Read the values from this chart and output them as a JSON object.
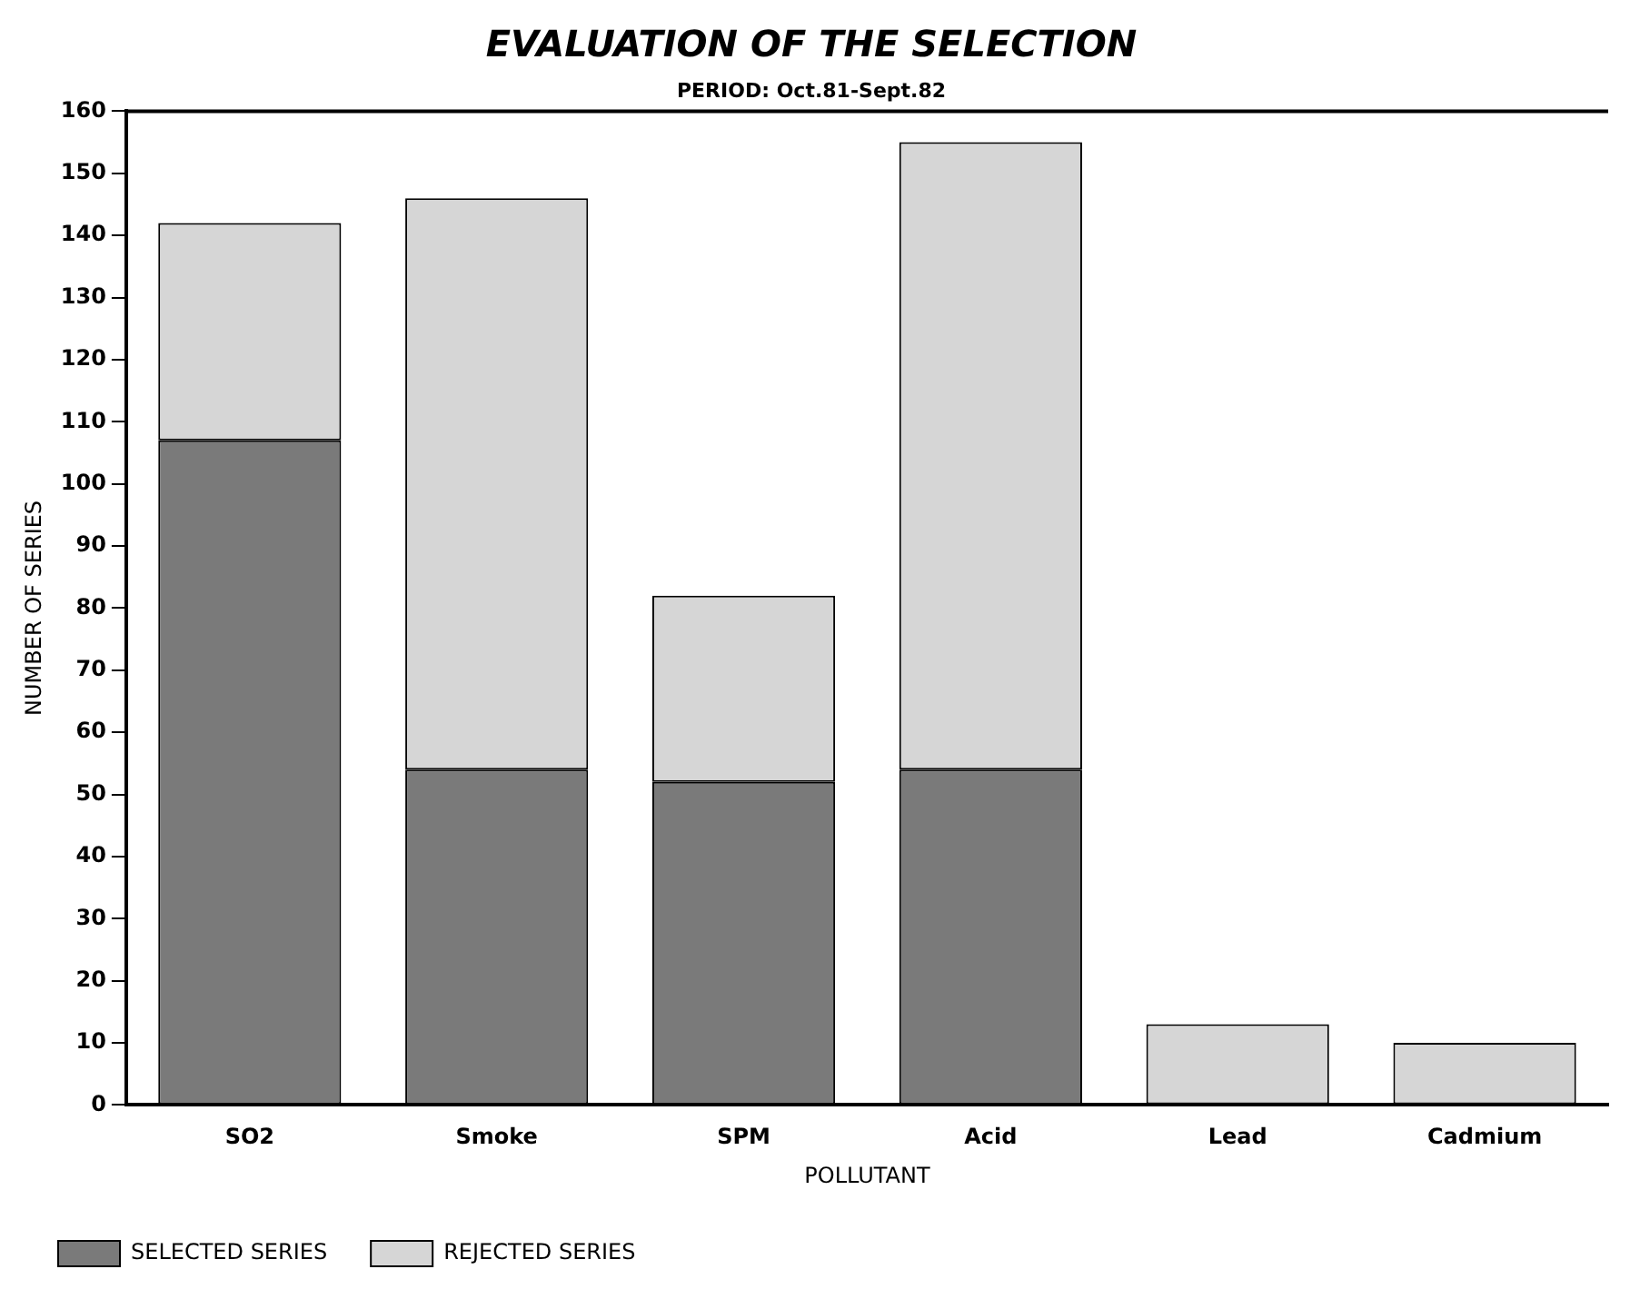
{
  "chart_data": {
    "type": "bar",
    "title": "EVALUATION OF THE SELECTION",
    "subtitle": "PERIOD: Oct.81-Sept.82",
    "xlabel": "POLLUTANT",
    "ylabel": "NUMBER OF SERIES",
    "categories": [
      "SO2",
      "Smoke",
      "SPM",
      "Acid",
      "Lead",
      "Cadmium"
    ],
    "series": [
      {
        "name": "SELECTED SERIES",
        "color": "#7a7a7a",
        "values": [
          107,
          54,
          52,
          54,
          0,
          0
        ]
      },
      {
        "name": "REJECTED SERIES",
        "color": "#d6d6d6",
        "values": [
          35,
          92,
          30,
          101,
          13,
          10
        ]
      }
    ],
    "stacked": true,
    "ylim": [
      0,
      160
    ],
    "yticks": [
      0,
      10,
      20,
      30,
      40,
      50,
      60,
      70,
      80,
      90,
      100,
      110,
      120,
      130,
      140,
      150,
      160
    ],
    "grid": false,
    "legend": "bottom"
  }
}
